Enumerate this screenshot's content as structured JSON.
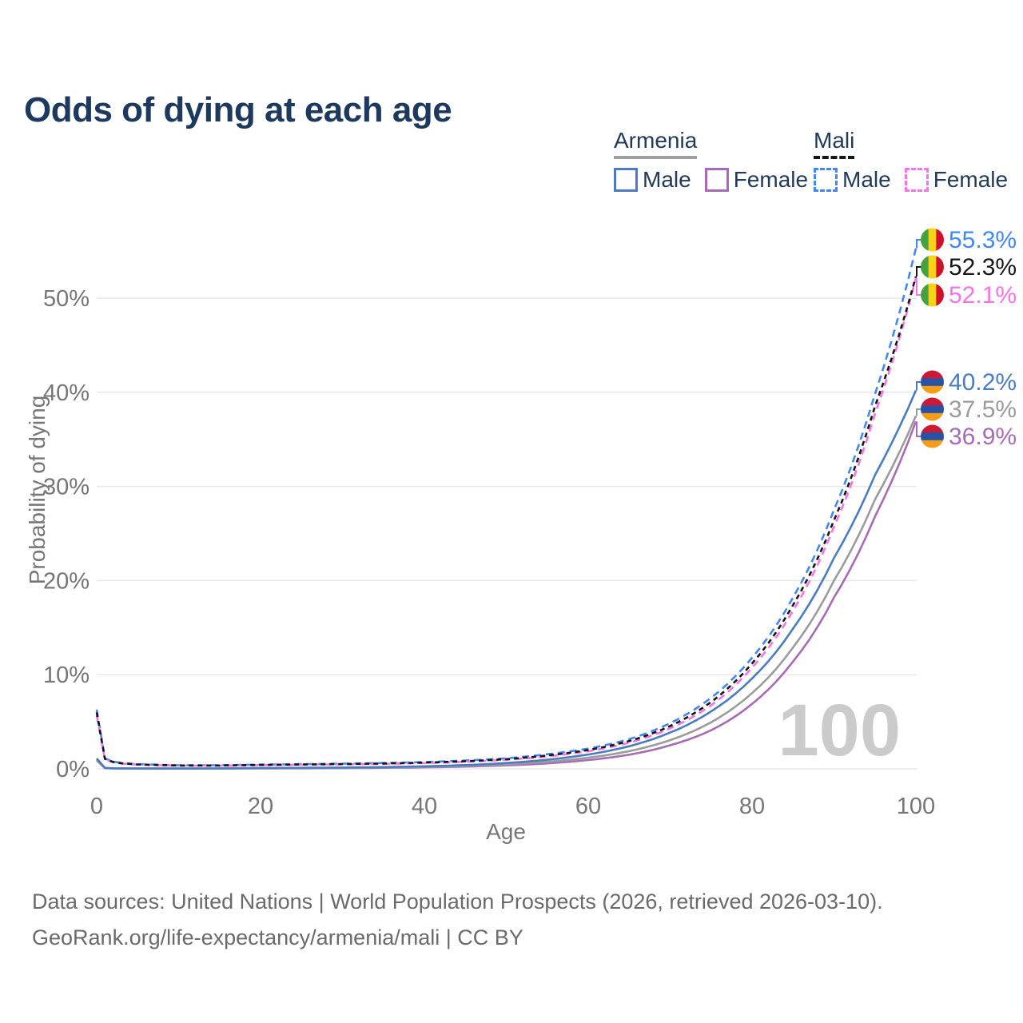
{
  "page": {
    "title": "Odds of dying at each age",
    "watermark": "100"
  },
  "legend": {
    "armenia": {
      "label": "Armenia",
      "items": [
        {
          "label": "Male"
        },
        {
          "label": "Female"
        }
      ]
    },
    "mali": {
      "label": "Mali",
      "items": [
        {
          "label": "Male"
        },
        {
          "label": "Female"
        }
      ]
    }
  },
  "axes": {
    "x_label": "Age",
    "y_label": "Probability of dying",
    "x_ticks": [
      "0",
      "20",
      "40",
      "60",
      "80",
      "100"
    ],
    "y_ticks": [
      "0%",
      "10%",
      "20%",
      "30%",
      "40%",
      "50%"
    ]
  },
  "footer": {
    "line1": "Data sources: United Nations | World Population Prospects (2026, retrieved 2026-03-10).",
    "line2": "GeoRank.org/life-expectancy/armenia/mali | CC BY"
  },
  "colors": {
    "title_text": "#1D3A5E",
    "legend_text": "#223A57",
    "axis_text": "#767676",
    "gridline": "#E8E8E8",
    "watermark": "#CBCBCB",
    "footer_text": "#6A6A6A",
    "flags": {
      "armenia": {
        "orientation": "horizontal",
        "stripes": [
          "#CE1936",
          "#2853A4",
          "#F59D18"
        ]
      },
      "mali": {
        "orientation": "vertical",
        "stripes": [
          "#46A13C",
          "#FCD116",
          "#CE1126"
        ]
      }
    }
  },
  "chart_data": {
    "type": "line",
    "title": "Odds of dying at each age",
    "xlabel": "Age",
    "ylabel": "Probability of dying",
    "xlim": [
      0,
      100
    ],
    "ylim_percent": [
      0,
      57
    ],
    "grid": "horizontal-only",
    "legend_position": "top-right",
    "note": "values are probability of dying (percent) at each age",
    "ages": [
      0,
      1,
      2,
      3,
      5,
      10,
      15,
      20,
      25,
      30,
      35,
      40,
      45,
      50,
      55,
      60,
      65,
      70,
      75,
      80,
      85,
      90,
      95,
      100
    ],
    "series": [
      {
        "id": "armenia_female",
        "name": "Armenia Female",
        "country_id": "armenia",
        "sex": "female",
        "style": "solid",
        "color": "#A76CB5",
        "end_label": "36.9%",
        "values": [
          0.9,
          0.08,
          0.05,
          0.04,
          0.032,
          0.024,
          0.033,
          0.05,
          0.06,
          0.08,
          0.11,
          0.16,
          0.24,
          0.37,
          0.58,
          0.93,
          1.5,
          2.5,
          4.1,
          6.9,
          11.4,
          18.2,
          26.8,
          36.9
        ]
      },
      {
        "id": "armenia_both",
        "name": "Armenia Both sexes",
        "country_id": "armenia",
        "sex": "both",
        "style": "solid",
        "color": "#9B9B9B",
        "end_label": "37.5%",
        "values": [
          1.0,
          0.09,
          0.055,
          0.045,
          0.036,
          0.027,
          0.04,
          0.07,
          0.085,
          0.11,
          0.15,
          0.21,
          0.31,
          0.48,
          0.75,
          1.18,
          1.88,
          3.05,
          4.95,
          8.05,
          12.9,
          20.0,
          28.6,
          37.5
        ]
      },
      {
        "id": "armenia_male",
        "name": "Armenia Male",
        "country_id": "armenia",
        "sex": "male",
        "style": "solid",
        "color": "#4A7CC2",
        "end_label": "40.2%",
        "values": [
          1.1,
          0.1,
          0.06,
          0.05,
          0.04,
          0.03,
          0.05,
          0.09,
          0.11,
          0.14,
          0.19,
          0.27,
          0.4,
          0.62,
          0.97,
          1.52,
          2.4,
          3.85,
          6.1,
          9.6,
          14.9,
          22.4,
          31.2,
          40.2
        ]
      },
      {
        "id": "mali_male",
        "name": "Mali Male",
        "country_id": "mali",
        "sex": "male",
        "style": "dashed",
        "color": "#4387F2",
        "end_label": "55.3%",
        "values": [
          6.3,
          1.1,
          0.78,
          0.62,
          0.5,
          0.38,
          0.38,
          0.45,
          0.5,
          0.55,
          0.62,
          0.72,
          0.88,
          1.12,
          1.55,
          2.15,
          3.15,
          4.85,
          7.55,
          11.8,
          18.2,
          27.5,
          39.8,
          55.3
        ]
      },
      {
        "id": "mali_female",
        "name": "Mali Female",
        "country_id": "mali",
        "sex": "female",
        "style": "dashed",
        "color": "#F973E6",
        "end_label": "52.1%",
        "values": [
          5.7,
          1.0,
          0.7,
          0.56,
          0.45,
          0.34,
          0.34,
          0.39,
          0.44,
          0.48,
          0.53,
          0.61,
          0.75,
          0.95,
          1.32,
          1.87,
          2.78,
          4.3,
          6.75,
          10.75,
          16.8,
          25.7,
          37.7,
          52.1
        ]
      },
      {
        "id": "mali_both",
        "name": "Mali Both sexes",
        "country_id": "mali",
        "sex": "both",
        "style": "dashed",
        "color": "#161616",
        "end_label": "52.3%",
        "values": [
          6.0,
          1.05,
          0.74,
          0.59,
          0.47,
          0.36,
          0.36,
          0.42,
          0.47,
          0.51,
          0.57,
          0.66,
          0.81,
          1.03,
          1.42,
          2.0,
          2.95,
          4.55,
          7.1,
          11.2,
          17.4,
          26.4,
          38.5,
          52.3
        ]
      }
    ]
  }
}
